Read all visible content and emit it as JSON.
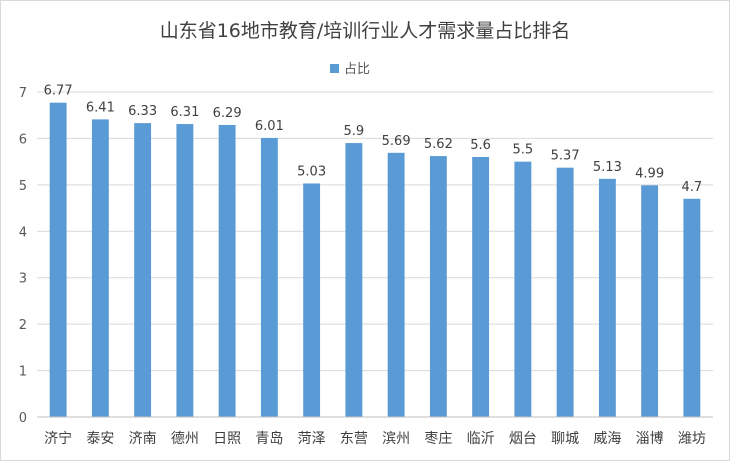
{
  "chart_data": {
    "type": "bar",
    "title": "山东省16地市教育/培训行业人才需求量占比排名",
    "xlabel": "",
    "ylabel": "",
    "categories": [
      "济宁",
      "泰安",
      "济南",
      "德州",
      "日照",
      "青岛",
      "菏泽",
      "东营",
      "滨州",
      "枣庄",
      "临沂",
      "烟台",
      "聊城",
      "威海",
      "淄博",
      "潍坊"
    ],
    "series": [
      {
        "name": "占比",
        "values": [
          6.77,
          6.41,
          6.33,
          6.31,
          6.29,
          6.01,
          5.03,
          5.9,
          5.69,
          5.62,
          5.6,
          5.5,
          5.37,
          5.13,
          4.99,
          4.7
        ],
        "data_labels": [
          "6.77",
          "6.41",
          "6.33",
          "6.31",
          "6.29",
          "6.01",
          "5.03",
          "5.9",
          "5.69",
          "5.62",
          "5.6",
          "5.5",
          "5.37",
          "5.13",
          "4.99",
          "4.7"
        ]
      }
    ],
    "ylim": [
      0,
      7
    ],
    "yticks": [
      "0",
      "1",
      "2",
      "3",
      "4",
      "5",
      "6",
      "7"
    ],
    "grid": true,
    "legend_position": "top-center",
    "colors": {
      "bar": "#5b9bd5",
      "grid": "#d9d9d9",
      "axis": "#bfbfbf"
    }
  }
}
